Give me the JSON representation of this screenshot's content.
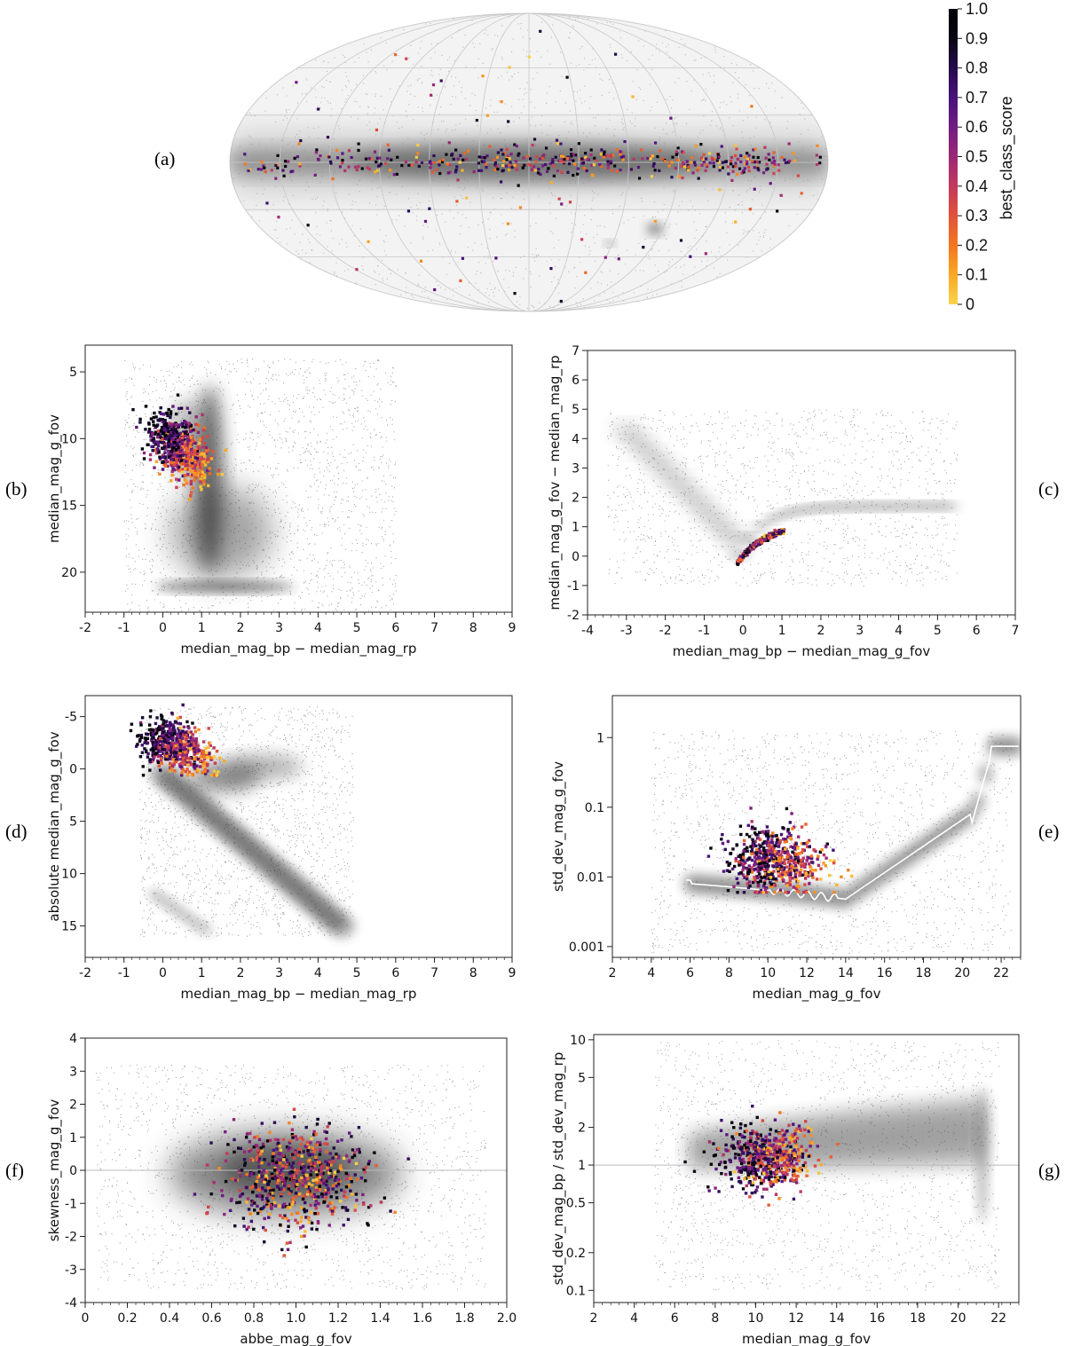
{
  "figure": {
    "colorbar": {
      "label": "best_class_score",
      "ticks": [
        "0",
        "0.1",
        "0.2",
        "0.3",
        "0.4",
        "0.5",
        "0.6",
        "0.7",
        "0.8",
        "0.9",
        "1.0"
      ],
      "min": 0,
      "max": 1,
      "colormap": [
        "#f8d44a",
        "#f9a825",
        "#f3761f",
        "#e0523a",
        "#c2395d",
        "#9b2876",
        "#711d82",
        "#47127a",
        "#240b4a",
        "#0a0613",
        "#000004"
      ]
    },
    "background_color": "#8a8a8a",
    "mean_curve_color": "#ffffff"
  },
  "chart_data": [
    {
      "id": "a",
      "letter": "(a)",
      "type": "scatter",
      "projection": "mollweide",
      "title": "",
      "xlabel": "",
      "ylabel": "",
      "description_counts": {
        "foreground_points": 520
      }
    },
    {
      "id": "b",
      "letter": "(b)",
      "type": "scatter",
      "xlabel": "median_mag_bp − median_mag_rp",
      "ylabel": "median_mag_g_fov",
      "xlim": [
        -2,
        9
      ],
      "ylim": [
        23,
        3
      ],
      "yscale": "linear",
      "xticks": [
        -2,
        -1,
        0,
        1,
        2,
        3,
        4,
        5,
        6,
        7,
        8,
        9
      ],
      "yticks": [
        5,
        10,
        15,
        20
      ]
    },
    {
      "id": "c",
      "letter": "(c)",
      "type": "scatter",
      "xlabel": "median_mag_bp − median_mag_g_fov",
      "ylabel": "median_mag_g_fov − median_mag_rp",
      "xlim": [
        -4,
        7
      ],
      "ylim": [
        -2,
        7
      ],
      "yscale": "linear",
      "xticks": [
        -4,
        -3,
        -2,
        -1,
        0,
        1,
        2,
        3,
        4,
        5,
        6,
        7
      ],
      "yticks": [
        -2,
        -1,
        0,
        1,
        2,
        3,
        4,
        5,
        6,
        7
      ]
    },
    {
      "id": "d",
      "letter": "(d)",
      "type": "scatter",
      "xlabel": "median_mag_bp − median_mag_rp",
      "ylabel": "absolute median_mag_g_fov",
      "xlim": [
        -2,
        9
      ],
      "ylim": [
        18,
        -7
      ],
      "yscale": "linear",
      "xticks": [
        -2,
        -1,
        0,
        1,
        2,
        3,
        4,
        5,
        6,
        7,
        8,
        9
      ],
      "yticks": [
        -5,
        0,
        5,
        10,
        15
      ]
    },
    {
      "id": "e",
      "letter": "(e)",
      "type": "scatter",
      "xlabel": "median_mag_g_fov",
      "ylabel": "std_dev_mag_g_fov",
      "xlim": [
        2,
        23
      ],
      "ylim": [
        0.0007,
        4
      ],
      "yscale": "log",
      "xticks": [
        2,
        4,
        6,
        8,
        10,
        12,
        14,
        16,
        18,
        20,
        22
      ],
      "yticks": [
        0.001,
        0.01,
        0.1,
        1
      ],
      "ytick_labels": [
        "0.001",
        "0.01",
        "0.1",
        "1"
      ]
    },
    {
      "id": "f",
      "letter": "(f)",
      "type": "scatter",
      "xlabel": "abbe_mag_g_fov",
      "ylabel": "skewness_mag_g_fov",
      "xlim": [
        0,
        2
      ],
      "ylim": [
        -4,
        4
      ],
      "yscale": "linear",
      "xticks": [
        0,
        0.2,
        0.4,
        0.6,
        0.8,
        1.0,
        1.2,
        1.4,
        1.6,
        1.8,
        2.0
      ],
      "xtick_labels": [
        "0",
        "0.2",
        "0.4",
        "0.6",
        "0.8",
        "1.0",
        "1.2",
        "1.4",
        "1.6",
        "1.8",
        "2.0"
      ],
      "yticks": [
        -4,
        -3,
        -2,
        -1,
        0,
        1,
        2,
        3,
        4
      ],
      "hline": 0
    },
    {
      "id": "g",
      "letter": "(g)",
      "type": "scatter",
      "xlabel": "median_mag_g_fov",
      "ylabel": "std_dev_mag_bp / std_dev_mag_rp",
      "xlim": [
        2,
        23
      ],
      "ylim": [
        0.08,
        11
      ],
      "yscale": "log",
      "xticks": [
        2,
        4,
        6,
        8,
        10,
        12,
        14,
        16,
        18,
        20,
        22
      ],
      "yticks": [
        0.1,
        0.2,
        0.5,
        1,
        2,
        5,
        10
      ],
      "ytick_labels": [
        "0.1",
        "0.2",
        "0.5",
        "1",
        "2",
        "5",
        "10"
      ],
      "hline": 1
    }
  ]
}
